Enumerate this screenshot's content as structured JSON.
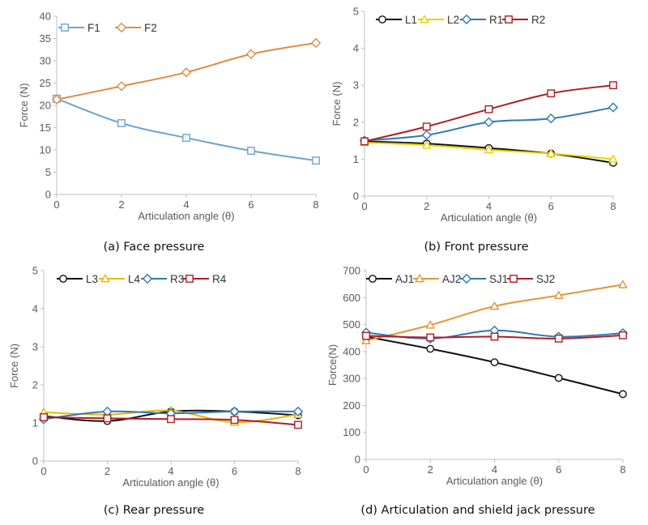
{
  "chart_data": [
    {
      "type": "line",
      "caption": "(a) Face pressure",
      "xlabel": "Articulation angle (θ)",
      "ylabel": "Force (N)",
      "x": [
        0,
        2,
        4,
        6,
        8
      ],
      "xlim": [
        0,
        8
      ],
      "ylim": [
        0,
        40
      ],
      "yticks": [
        0,
        5,
        10,
        15,
        20,
        25,
        30,
        35,
        40
      ],
      "grid": false,
      "legend": "top-left",
      "series": [
        {
          "name": "F1",
          "values": [
            21.5,
            16.0,
            12.7,
            9.8,
            7.6
          ],
          "color": "#6fa3cf",
          "marker": "square"
        },
        {
          "name": "F2",
          "values": [
            21.3,
            24.3,
            27.4,
            31.5,
            34.0
          ],
          "color": "#e08b46",
          "marker": "diamond"
        }
      ]
    },
    {
      "type": "line",
      "caption": "(b) Front pressure",
      "xlabel": "Articulation angle (θ)",
      "ylabel": "Force (N)",
      "x": [
        0,
        2,
        4,
        6,
        8
      ],
      "xlim": [
        0,
        8
      ],
      "ylim": [
        0,
        5
      ],
      "yticks": [
        0,
        1,
        2,
        3,
        4,
        5
      ],
      "grid": false,
      "legend": "top",
      "series": [
        {
          "name": "L1",
          "values": [
            1.48,
            1.42,
            1.3,
            1.15,
            0.9
          ],
          "color": "#111111",
          "marker": "circle"
        },
        {
          "name": "L2",
          "values": [
            1.45,
            1.38,
            1.25,
            1.15,
            1.0
          ],
          "color": "#e8d000",
          "marker": "triangle"
        },
        {
          "name": "R1",
          "values": [
            1.5,
            1.65,
            2.0,
            2.1,
            2.4
          ],
          "color": "#2e77b8",
          "marker": "diamond"
        },
        {
          "name": "R2",
          "values": [
            1.48,
            1.88,
            2.35,
            2.78,
            3.0
          ],
          "color": "#b01c22",
          "marker": "square"
        }
      ]
    },
    {
      "type": "line",
      "caption": "(c) Rear pressure",
      "xlabel": "Articulation angle (θ)",
      "ylabel": "Force (N)",
      "x": [
        0,
        2,
        4,
        6,
        8
      ],
      "xlim": [
        0,
        8
      ],
      "ylim": [
        0,
        5
      ],
      "yticks": [
        0,
        1,
        2,
        3,
        4,
        5
      ],
      "grid": false,
      "legend": "top",
      "series": [
        {
          "name": "L3",
          "values": [
            1.18,
            1.05,
            1.3,
            1.3,
            1.2
          ],
          "color": "#111111",
          "marker": "circle"
        },
        {
          "name": "L4",
          "values": [
            1.28,
            1.22,
            1.32,
            1.02,
            1.22
          ],
          "color": "#e8b800",
          "marker": "triangle"
        },
        {
          "name": "R3",
          "values": [
            1.1,
            1.3,
            1.25,
            1.3,
            1.3
          ],
          "color": "#2e77b8",
          "marker": "diamond"
        },
        {
          "name": "R4",
          "values": [
            1.15,
            1.12,
            1.1,
            1.08,
            0.95
          ],
          "color": "#b01c22",
          "marker": "square"
        }
      ]
    },
    {
      "type": "line",
      "caption": "(d) Articulation and shield jack pressure",
      "xlabel": "Articulation angle (θ)",
      "ylabel": "Force(N)",
      "x": [
        0,
        2,
        4,
        6,
        8
      ],
      "xlim": [
        0,
        8
      ],
      "ylim": [
        0,
        700
      ],
      "yticks": [
        0,
        100,
        200,
        300,
        400,
        500,
        600,
        700
      ],
      "grid": false,
      "legend": "top",
      "series": [
        {
          "name": "AJ1",
          "values": [
            455,
            410,
            360,
            302,
            242
          ],
          "color": "#111111",
          "marker": "circle"
        },
        {
          "name": "AJ2",
          "values": [
            440,
            498,
            568,
            608,
            648
          ],
          "color": "#e8943a",
          "marker": "triangle"
        },
        {
          "name": "SJ1",
          "values": [
            470,
            448,
            478,
            455,
            468
          ],
          "color": "#2e77b8",
          "marker": "diamond"
        },
        {
          "name": "SJ2",
          "values": [
            458,
            452,
            455,
            448,
            460
          ],
          "color": "#b01c22",
          "marker": "square"
        }
      ]
    }
  ]
}
